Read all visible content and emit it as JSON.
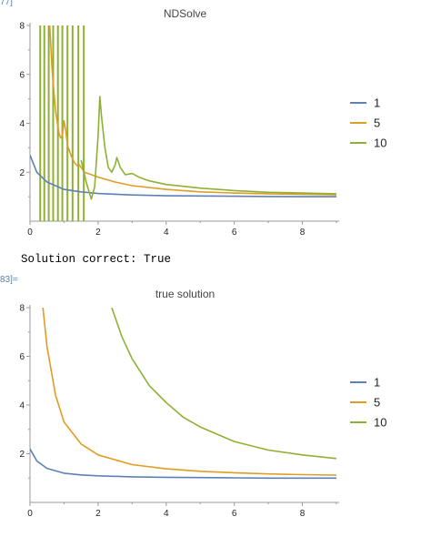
{
  "cells": {
    "out1_label": "77]",
    "out2_label": "83]="
  },
  "message": "Solution correct: True",
  "colors": {
    "c1": "#5e81b5",
    "c5": "#e19c24",
    "c10": "#8fb032",
    "axis": "#999999"
  },
  "chart_data": [
    {
      "type": "line",
      "title": "NDSolve",
      "xlim": [
        0,
        9
      ],
      "ylim": [
        0,
        8
      ],
      "xticks": [
        "0",
        "2",
        "4",
        "6",
        "8"
      ],
      "yticks": [
        "2",
        "4",
        "6",
        "8"
      ],
      "legend": "right",
      "series": [
        {
          "name": "1",
          "color": "#5e81b5",
          "x": [
            0,
            0.2,
            0.5,
            1,
            1.5,
            2,
            3,
            4,
            5,
            6,
            7,
            8,
            9
          ],
          "y": [
            2.7,
            2.0,
            1.6,
            1.3,
            1.2,
            1.13,
            1.07,
            1.04,
            1.03,
            1.02,
            1.01,
            1.0,
            1.0
          ]
        },
        {
          "name": "5",
          "color": "#e19c24",
          "x": [
            0.58,
            0.65,
            0.75,
            0.85,
            0.9,
            0.95,
            1.0,
            1.05,
            1.1,
            1.2,
            1.3,
            1.4,
            1.45,
            1.5,
            1.6,
            1.8,
            2,
            2.5,
            3,
            4,
            5,
            6,
            7,
            8,
            9
          ],
          "y": [
            8,
            6.2,
            4.5,
            3.6,
            3.4,
            3.5,
            4.1,
            3.7,
            3.1,
            2.7,
            2.4,
            2.25,
            2.3,
            2.2,
            2.0,
            1.9,
            1.8,
            1.6,
            1.45,
            1.3,
            1.2,
            1.15,
            1.12,
            1.1,
            1.08
          ]
        },
        {
          "name": "10",
          "color": "#8fb032",
          "x": [
            1.5,
            1.65,
            1.8,
            1.9,
            2.0,
            2.05,
            2.1,
            2.2,
            2.3,
            2.4,
            2.5,
            2.55,
            2.65,
            2.8,
            3.0,
            3.2,
            3.5,
            4,
            5,
            6,
            7,
            8,
            9
          ],
          "y": [
            2.5,
            1.6,
            0.9,
            1.4,
            3.5,
            5.1,
            4.3,
            3.0,
            2.2,
            2.0,
            2.3,
            2.6,
            2.2,
            1.9,
            1.95,
            1.8,
            1.65,
            1.5,
            1.35,
            1.25,
            1.18,
            1.15,
            1.12
          ]
        }
      ],
      "oscillation_x": [
        0.3,
        0.42,
        0.55,
        0.68,
        0.82,
        0.95,
        1.1,
        1.25,
        1.42,
        1.58
      ]
    },
    {
      "type": "line",
      "title": "true solution",
      "xlim": [
        0,
        9
      ],
      "ylim": [
        0,
        8
      ],
      "xticks": [
        "0",
        "2",
        "4",
        "6",
        "8"
      ],
      "yticks": [
        "2",
        "4",
        "6",
        "8"
      ],
      "legend": "right",
      "series": [
        {
          "name": "1",
          "color": "#5e81b5",
          "x": [
            0,
            0.2,
            0.5,
            1,
            1.5,
            2,
            3,
            4,
            5,
            6,
            7,
            8,
            9
          ],
          "y": [
            2.2,
            1.7,
            1.4,
            1.2,
            1.13,
            1.09,
            1.05,
            1.03,
            1.02,
            1.01,
            1.0,
            1.0,
            1.0
          ]
        },
        {
          "name": "5",
          "color": "#e19c24",
          "x": [
            0.38,
            0.5,
            0.75,
            1,
            1.5,
            2,
            3,
            4,
            5,
            6,
            7,
            8,
            9
          ],
          "y": [
            8,
            6.4,
            4.4,
            3.3,
            2.4,
            1.95,
            1.55,
            1.38,
            1.28,
            1.22,
            1.17,
            1.14,
            1.12
          ]
        },
        {
          "name": "10",
          "color": "#8fb032",
          "x": [
            2.4,
            2.7,
            3,
            3.5,
            4,
            4.5,
            5,
            6,
            7,
            8,
            9
          ],
          "y": [
            8,
            6.8,
            5.9,
            4.8,
            4.1,
            3.5,
            3.1,
            2.5,
            2.15,
            1.95,
            1.8
          ]
        }
      ]
    }
  ]
}
